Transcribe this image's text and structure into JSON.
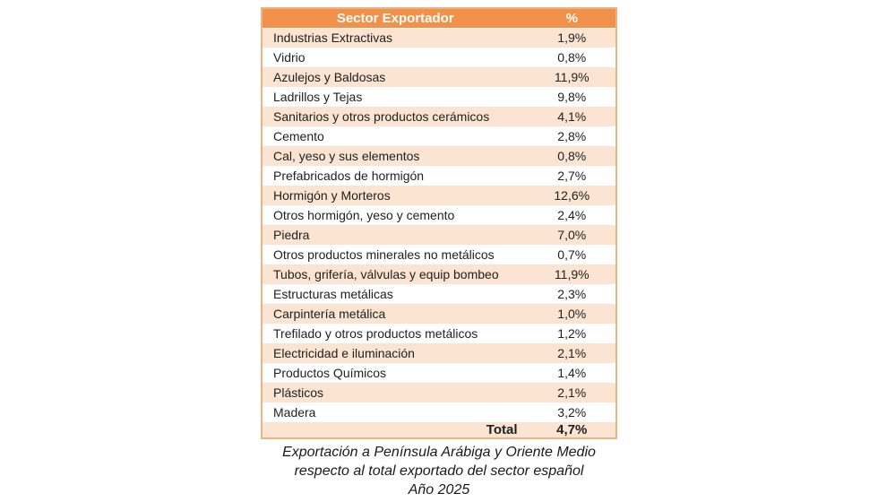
{
  "colors": {
    "header_bg": "#F2914A",
    "header_text": "#FFFFFF",
    "stripe_bg": "#FBE4D1",
    "row_bg": "#FFFFFF",
    "border": "#EBB583",
    "body_text": "#212121",
    "page_bg": "#FFFFFF"
  },
  "chart_data": {
    "type": "table",
    "columns": [
      "Sector Exportador",
      "%"
    ],
    "rows": [
      {
        "sector": "Industrias Extractivas",
        "percent": "1,9%",
        "value": 1.9
      },
      {
        "sector": "Vidrio",
        "percent": "0,8%",
        "value": 0.8
      },
      {
        "sector": "Azulejos y Baldosas",
        "percent": "11,9%",
        "value": 11.9
      },
      {
        "sector": "Ladrillos y Tejas",
        "percent": "9,8%",
        "value": 9.8
      },
      {
        "sector": "Sanitarios y otros productos cerámicos",
        "percent": "4,1%",
        "value": 4.1
      },
      {
        "sector": "Cemento",
        "percent": "2,8%",
        "value": 2.8
      },
      {
        "sector": "Cal, yeso y sus elementos",
        "percent": "0,8%",
        "value": 0.8
      },
      {
        "sector": "Prefabricados de hormigón",
        "percent": "2,7%",
        "value": 2.7
      },
      {
        "sector": "Hormigón y Morteros",
        "percent": "12,6%",
        "value": 12.6
      },
      {
        "sector": "Otros hormigón, yeso y cemento",
        "percent": "2,4%",
        "value": 2.4
      },
      {
        "sector": "Piedra",
        "percent": "7,0%",
        "value": 7.0
      },
      {
        "sector": "Otros productos minerales no metálicos",
        "percent": "0,7%",
        "value": 0.7
      },
      {
        "sector": "Tubos, grifería, válvulas y equip bombeo",
        "percent": "11,9%",
        "value": 11.9
      },
      {
        "sector": "Estructuras metálicas",
        "percent": "2,3%",
        "value": 2.3
      },
      {
        "sector": "Carpintería metálica",
        "percent": "1,0%",
        "value": 1.0
      },
      {
        "sector": "Trefilado y otros productos metálicos",
        "percent": "1,2%",
        "value": 1.2
      },
      {
        "sector": "Electricidad e iluminación",
        "percent": "2,1%",
        "value": 2.1
      },
      {
        "sector": "Productos Químicos",
        "percent": "1,4%",
        "value": 1.4
      },
      {
        "sector": "Plásticos",
        "percent": "2,1%",
        "value": 2.1
      },
      {
        "sector": "Madera",
        "percent": "3,2%",
        "value": 3.2
      }
    ],
    "total": {
      "label": "Total",
      "percent": "4,7%",
      "value": 4.7
    },
    "caption": [
      "Exportación a Península Arábiga y Oriente Medio",
      "respecto al total exportado del sector español",
      "Año 2025"
    ]
  }
}
